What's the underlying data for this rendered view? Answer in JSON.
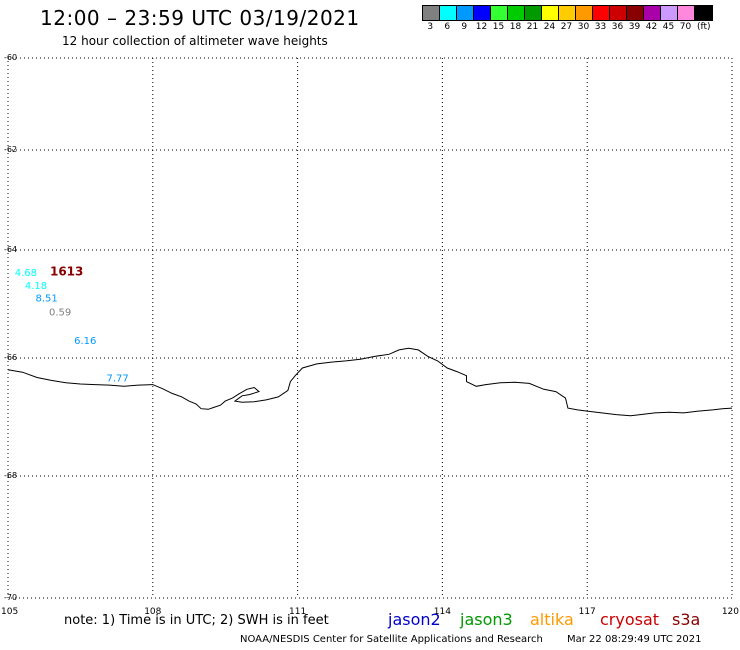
{
  "header": {
    "title": "12:00 – 23:59 UTC 03/19/2021",
    "subtitle": "12 hour collection of altimeter wave heights"
  },
  "legend": {
    "unit": "(ft)",
    "bins": [
      {
        "label": "3",
        "color": "#808080"
      },
      {
        "label": "6",
        "color": "#00ffff"
      },
      {
        "label": "9",
        "color": "#0099ff"
      },
      {
        "label": "12",
        "color": "#0000ff"
      },
      {
        "label": "15",
        "color": "#33ff33"
      },
      {
        "label": "18",
        "color": "#00cc00"
      },
      {
        "label": "21",
        "color": "#009900"
      },
      {
        "label": "24",
        "color": "#ffff00"
      },
      {
        "label": "27",
        "color": "#ffcc00"
      },
      {
        "label": "30",
        "color": "#ff9900"
      },
      {
        "label": "33",
        "color": "#ff0000"
      },
      {
        "label": "36",
        "color": "#cc0000"
      },
      {
        "label": "39",
        "color": "#880000"
      },
      {
        "label": "42",
        "color": "#aa00aa"
      },
      {
        "label": "45",
        "color": "#cc99ff"
      },
      {
        "label": "70",
        "color": "#ff88dd"
      },
      {
        "label": "",
        "color": "#000000"
      }
    ]
  },
  "map": {
    "lon_range": [
      105,
      120
    ],
    "lat_range": [
      -70,
      -60
    ],
    "x_ticks": [
      {
        "value": 105,
        "label": "105"
      },
      {
        "value": 108,
        "label": "108"
      },
      {
        "value": 111,
        "label": "111"
      },
      {
        "value": 114,
        "label": "114"
      },
      {
        "value": 117,
        "label": "117"
      },
      {
        "value": 120,
        "label": "120"
      }
    ],
    "y_ticks": [
      {
        "value": -60,
        "label": "-60"
      },
      {
        "value": -62,
        "label": "-62"
      },
      {
        "value": -64,
        "label": "-64"
      },
      {
        "value": -66,
        "label": "-66"
      },
      {
        "value": -68,
        "label": "-68"
      },
      {
        "value": -70,
        "label": "-70"
      }
    ],
    "observations": [
      {
        "label": "4.68",
        "lon": 105.14,
        "lat": -64.48,
        "color": "#00ffff",
        "bold": false
      },
      {
        "label": "1613",
        "lon": 105.87,
        "lat": -64.47,
        "color": "#880000",
        "bold": true
      },
      {
        "label": "4.18",
        "lon": 105.35,
        "lat": -64.72,
        "color": "#00ffff",
        "bold": false
      },
      {
        "label": "8.51",
        "lon": 105.57,
        "lat": -64.95,
        "color": "#0099ff",
        "bold": false
      },
      {
        "label": "0.59",
        "lon": 105.85,
        "lat": -65.21,
        "color": "#808080",
        "bold": false
      },
      {
        "label": "6.16",
        "lon": 106.37,
        "lat": -65.74,
        "color": "#0099ff",
        "bold": false
      },
      {
        "label": "7.77",
        "lon": 107.04,
        "lat": -66.4,
        "color": "#0099ff",
        "bold": false
      }
    ],
    "coastline": [
      [
        105.0,
        -66.2
      ],
      [
        105.3,
        -66.24
      ],
      [
        105.6,
        -66.33
      ],
      [
        105.9,
        -66.38
      ],
      [
        106.2,
        -66.42
      ],
      [
        106.5,
        -66.44
      ],
      [
        106.8,
        -66.45
      ],
      [
        107.1,
        -66.46
      ],
      [
        107.4,
        -66.48
      ],
      [
        107.7,
        -66.46
      ],
      [
        108.0,
        -66.45
      ],
      [
        108.2,
        -66.52
      ],
      [
        108.4,
        -66.6
      ],
      [
        108.6,
        -66.66
      ],
      [
        108.75,
        -66.73
      ],
      [
        108.9,
        -66.78
      ],
      [
        109.0,
        -66.86
      ],
      [
        109.15,
        -66.87
      ],
      [
        109.25,
        -66.84
      ],
      [
        109.4,
        -66.8
      ],
      [
        109.5,
        -66.73
      ],
      [
        109.65,
        -66.68
      ],
      [
        109.8,
        -66.6
      ],
      [
        109.95,
        -66.53
      ],
      [
        110.1,
        -66.5
      ],
      [
        110.2,
        -66.57
      ],
      [
        110.0,
        -66.62
      ],
      [
        109.85,
        -66.64
      ],
      [
        109.7,
        -66.73
      ],
      [
        109.85,
        -66.75
      ],
      [
        110.1,
        -66.74
      ],
      [
        110.35,
        -66.71
      ],
      [
        110.6,
        -66.66
      ],
      [
        110.8,
        -66.55
      ],
      [
        110.85,
        -66.4
      ],
      [
        110.95,
        -66.3
      ],
      [
        111.1,
        -66.17
      ],
      [
        111.4,
        -66.1
      ],
      [
        111.7,
        -66.07
      ],
      [
        112.0,
        -66.05
      ],
      [
        112.3,
        -66.02
      ],
      [
        112.6,
        -65.97
      ],
      [
        112.9,
        -65.93
      ],
      [
        113.1,
        -65.85
      ],
      [
        113.3,
        -65.82
      ],
      [
        113.5,
        -65.85
      ],
      [
        113.7,
        -65.97
      ],
      [
        113.9,
        -66.05
      ],
      [
        114.1,
        -66.17
      ],
      [
        114.3,
        -66.23
      ],
      [
        114.5,
        -66.3
      ],
      [
        114.5,
        -66.4
      ],
      [
        114.7,
        -66.48
      ],
      [
        114.9,
        -66.45
      ],
      [
        115.2,
        -66.42
      ],
      [
        115.5,
        -66.41
      ],
      [
        115.8,
        -66.43
      ],
      [
        116.1,
        -66.53
      ],
      [
        116.35,
        -66.57
      ],
      [
        116.55,
        -66.68
      ],
      [
        116.6,
        -66.85
      ],
      [
        116.8,
        -66.88
      ],
      [
        117.0,
        -66.9
      ],
      [
        117.3,
        -66.93
      ],
      [
        117.6,
        -66.96
      ],
      [
        117.9,
        -66.98
      ],
      [
        118.1,
        -66.96
      ],
      [
        118.4,
        -66.93
      ],
      [
        118.7,
        -66.92
      ],
      [
        119.0,
        -66.93
      ],
      [
        119.3,
        -66.9
      ],
      [
        119.6,
        -66.88
      ],
      [
        119.8,
        -66.86
      ],
      [
        120.0,
        -66.85
      ]
    ]
  },
  "footer": {
    "note": "note: 1) Time is in UTC; 2) SWH is in feet",
    "satellites": [
      {
        "name": "jason2",
        "color": "#0000cc"
      },
      {
        "name": "jason3",
        "color": "#009900"
      },
      {
        "name": "altika",
        "color": "#ff9900"
      },
      {
        "name": "cryosat",
        "color": "#cc0000"
      },
      {
        "name": "s3a",
        "color": "#880000"
      }
    ],
    "credit": "NOAA/NESDIS Center for Satellite Applications and Research",
    "timestamp": "Mar 22 08:29:49 UTC 2021"
  }
}
